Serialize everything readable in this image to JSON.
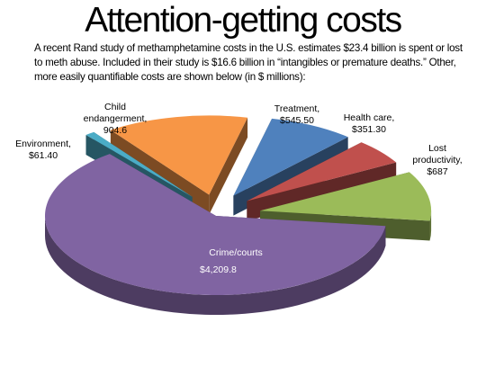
{
  "title": "Attention-getting costs",
  "subtitle": "A recent Rand study of methamphetamine costs in the U.S. estimates $23.4 billion is spent or lost to meth abuse. Included in their study is $16.6 billion in “intangibles or premature deaths.” Other, more easily quantifiable costs are shown below (in $ millions):",
  "chart_data": {
    "type": "pie",
    "style": "3d exploded pie",
    "legend": "none",
    "slices": [
      {
        "name": "Treatment",
        "value": 545.5,
        "label_lines": [
          "Treatment,",
          "$545.50"
        ],
        "color": "#4f81bd"
      },
      {
        "name": "Health care",
        "value": 351.3,
        "label_lines": [
          "Health care,",
          "$351.30"
        ],
        "color": "#c0504d"
      },
      {
        "name": "Lost productivity",
        "value": 687,
        "label_lines": [
          "Lost",
          "productivity,",
          "$687"
        ],
        "color": "#9bbb59"
      },
      {
        "name": "Crime/courts",
        "value": 4209.8,
        "label_lines": [
          "Crime/courts",
          "$4,209.8"
        ],
        "color": "#8064a2"
      },
      {
        "name": "Environment",
        "value": 61.4,
        "label_lines": [
          "Environment,",
          "$61.40"
        ],
        "color": "#4bacc6"
      },
      {
        "name": "Child endangerment",
        "value": 904.6,
        "label_lines": [
          "Child",
          "endangerment,",
          "904.6"
        ],
        "color": "#f79646"
      }
    ]
  }
}
